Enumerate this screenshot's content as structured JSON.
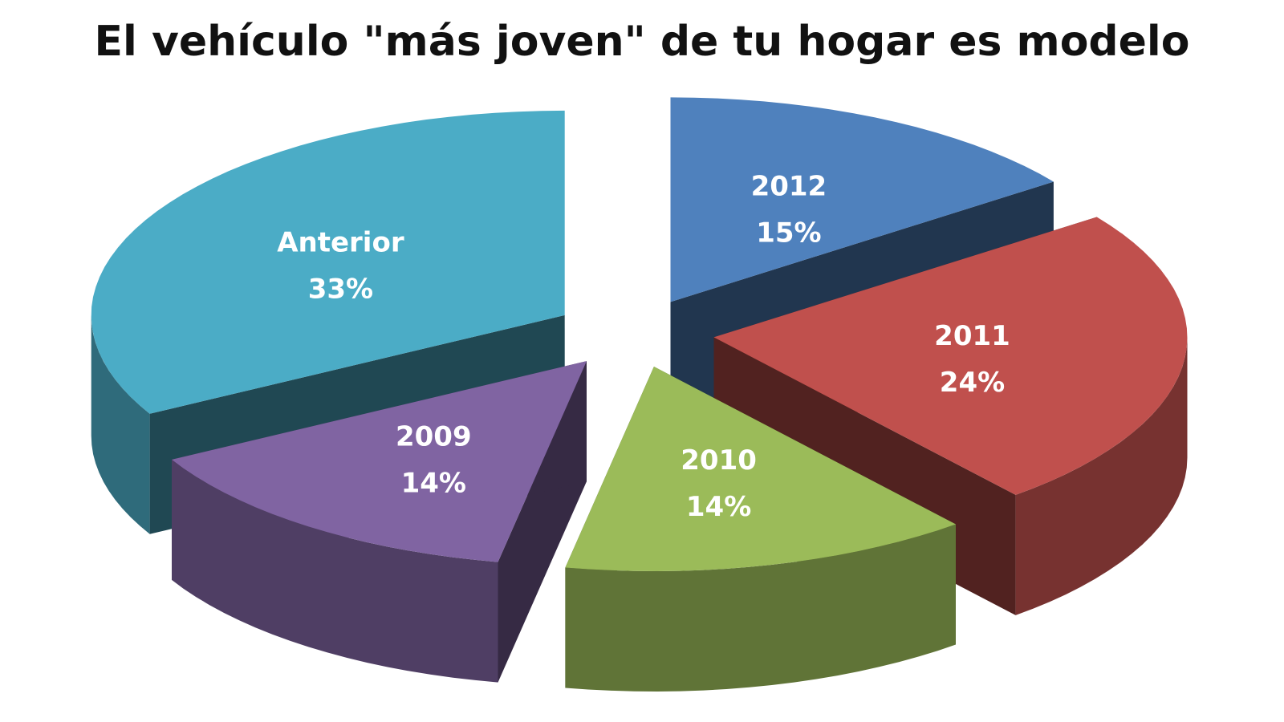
{
  "chart_data": {
    "type": "pie",
    "title": "El vehículo \"más joven\" de tu hogar es modelo",
    "categories": [
      "2012",
      "2011",
      "2010",
      "2009",
      "Anterior"
    ],
    "values": [
      15,
      24,
      14,
      14,
      33
    ],
    "value_labels": [
      "15%",
      "24%",
      "14%",
      "14%",
      "33%"
    ],
    "colors": [
      "#4F81BD",
      "#C0504D",
      "#9BBB59",
      "#8064A2",
      "#4BACC6"
    ],
    "style": "3d-exploded",
    "legend": "none"
  }
}
